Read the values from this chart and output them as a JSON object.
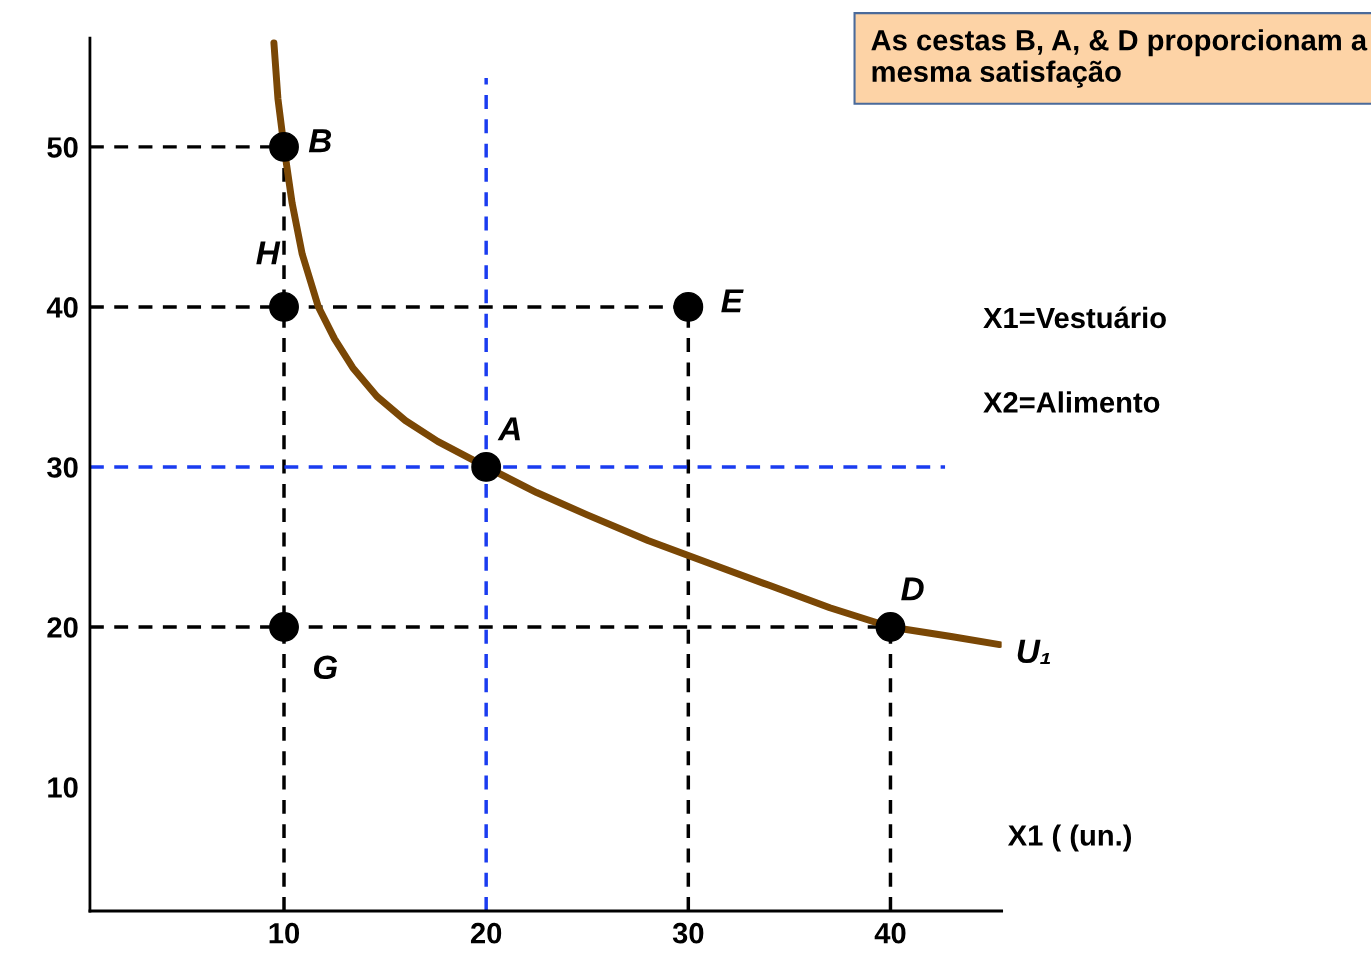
{
  "chart_data": {
    "type": "line",
    "xlim": [
      0.4,
      45.5
    ],
    "ylim": [
      2.25,
      56.8
    ],
    "xticks": [
      10,
      20,
      30,
      40
    ],
    "yticks": [
      10,
      20,
      30,
      40,
      50
    ],
    "grid": false,
    "legend": false,
    "series": [
      {
        "type": "line",
        "color": "#000000",
        "line_style": "dashed",
        "x": [
          0.4,
          10
        ],
        "values": [
          50,
          50
        ]
      },
      {
        "type": "line",
        "color": "#000000",
        "line_style": "dashed",
        "x": [
          0.4,
          30
        ],
        "values": [
          40,
          40
        ]
      },
      {
        "type": "line",
        "color": "#000000",
        "line_style": "dashed",
        "x": [
          0.4,
          40
        ],
        "values": [
          20,
          20
        ]
      },
      {
        "type": "line",
        "color": "#000000",
        "line_style": "dashed",
        "x": [
          10,
          10
        ],
        "values": [
          2.25,
          50
        ]
      },
      {
        "type": "line",
        "color": "#000000",
        "line_style": "dashed",
        "x": [
          30,
          30
        ],
        "values": [
          2.25,
          40
        ]
      },
      {
        "type": "line",
        "color": "#000000",
        "line_style": "dashed",
        "x": [
          40,
          40
        ],
        "values": [
          2.25,
          20
        ]
      },
      {
        "type": "line",
        "color": "#1a3cf0",
        "line_style": "dashed",
        "x": [
          20,
          20
        ],
        "values": [
          2.25,
          54.3
        ]
      },
      {
        "type": "line",
        "color": "#1a3cf0",
        "line_style": "dashed",
        "x": [
          0.4,
          42.7
        ],
        "values": [
          30,
          30
        ]
      },
      {
        "name": "U₁",
        "color": "#7a4705",
        "line_style": "solid",
        "x": [
          9.5,
          9.7,
          10,
          10.4,
          10.9,
          11.7,
          12.5,
          13.4,
          14.6,
          16,
          17.6,
          20,
          22.5,
          25,
          28,
          31,
          34,
          37,
          40,
          43,
          45.4
        ],
        "values": [
          56.5,
          53,
          50,
          46.5,
          43.3,
          40,
          38,
          36.2,
          34.4,
          32.9,
          31.6,
          30,
          28.4,
          27,
          25.4,
          24,
          22.6,
          21.2,
          20,
          19.4,
          18.9
        ]
      },
      {
        "type": "scatter",
        "color": "#000000",
        "marker": "circle",
        "x": [
          10,
          10,
          30,
          20,
          10,
          40
        ],
        "values": [
          50,
          40,
          40,
          30,
          20,
          20
        ]
      }
    ],
    "annotations": [
      {
        "text": "B",
        "x": 10,
        "y": 50
      },
      {
        "text": "H",
        "x": 10,
        "y": 40
      },
      {
        "text": "E",
        "x": 30,
        "y": 40
      },
      {
        "text": "A",
        "x": 20,
        "y": 30
      },
      {
        "text": "G",
        "x": 10,
        "y": 20
      },
      {
        "text": "D",
        "x": 40,
        "y": 20
      },
      "As cestas B, A, & D proporcionam a mesma satisfação",
      "X1=Vestuário",
      "X2=Alimento",
      "X1 ( (un.)"
    ]
  }
}
